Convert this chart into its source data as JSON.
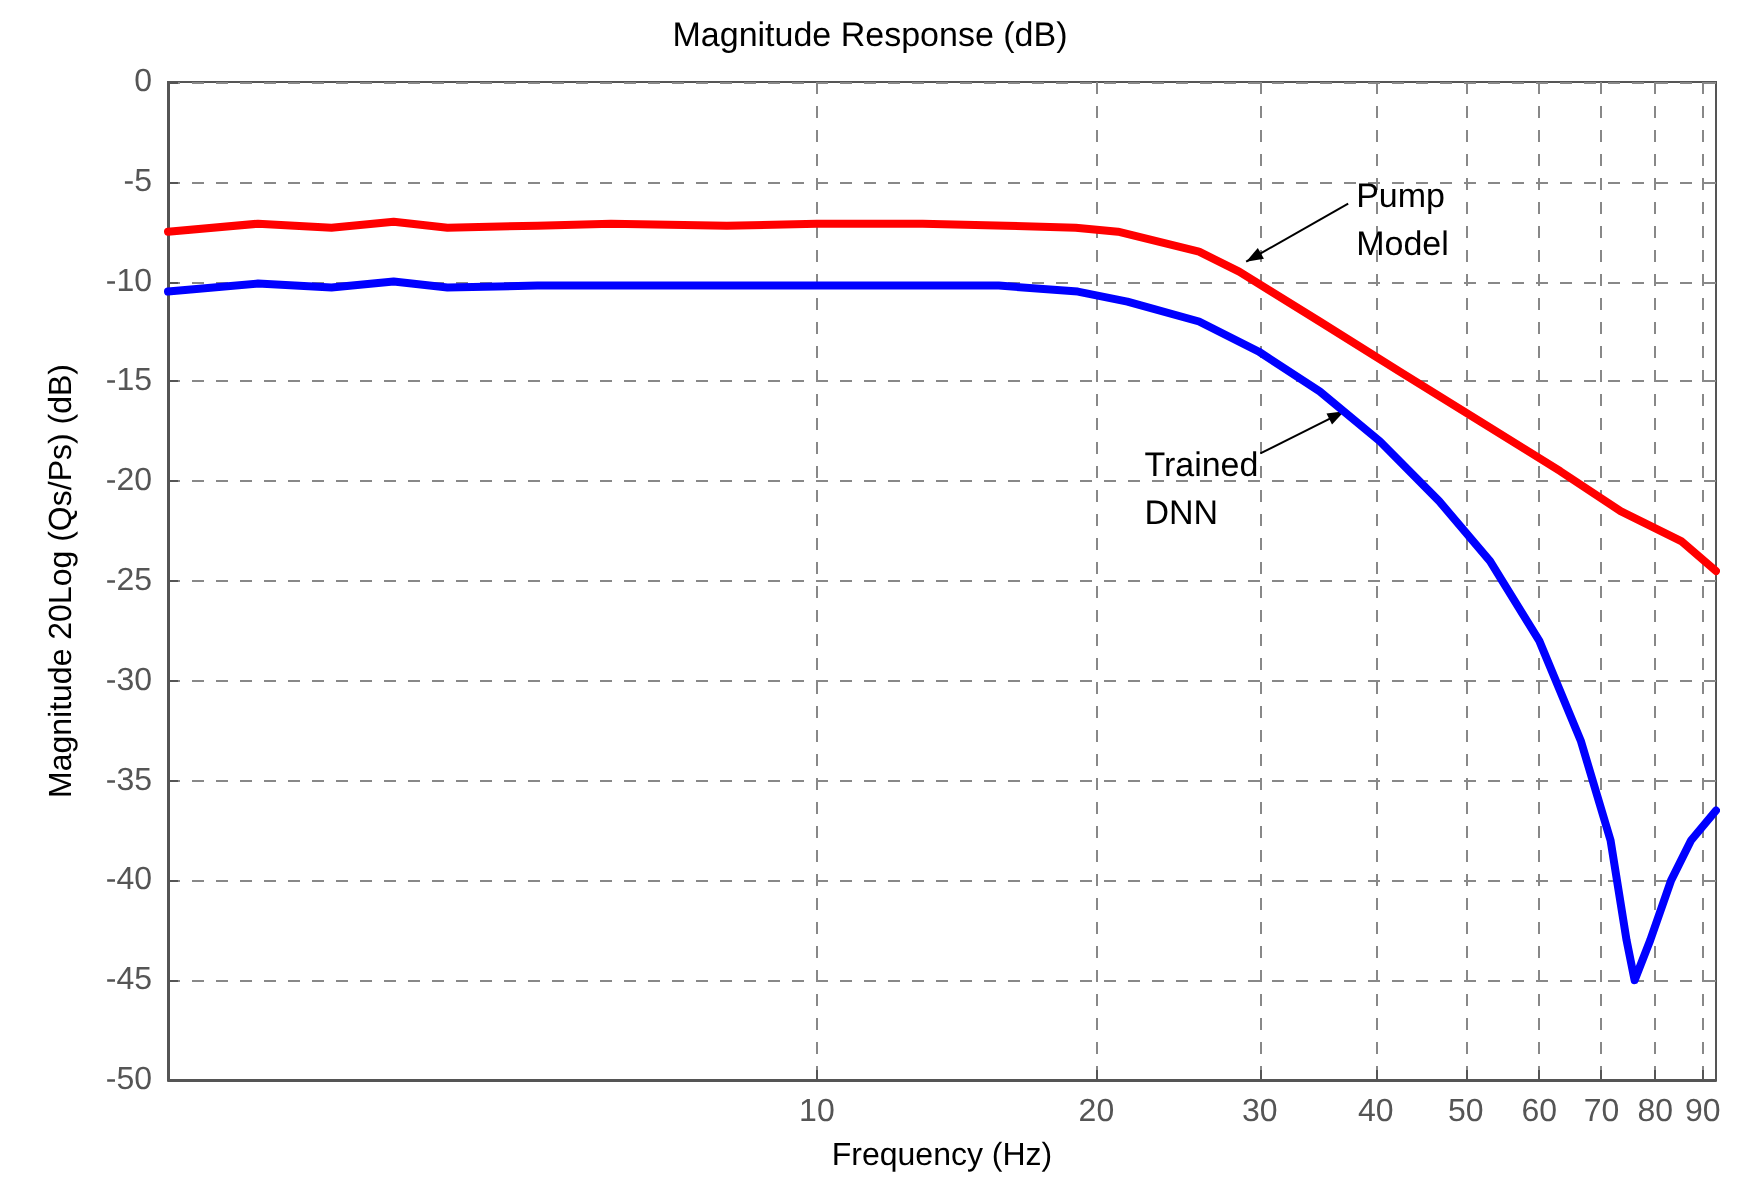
{
  "chart_data": {
    "type": "line",
    "title": "Magnitude Response (dB)",
    "xlabel": "Frequency (Hz)",
    "ylabel": "Magnitude 20Log (Qs/Ps) (dB)",
    "log": "x",
    "grid": true,
    "marker": "none",
    "line_style": "solid",
    "xlim": [
      2,
      93
    ],
    "xticks": [
      10,
      20,
      30,
      40,
      50,
      60,
      70,
      80,
      90
    ],
    "ylim": [
      -50,
      0
    ],
    "yticks": [
      -50,
      -45,
      -40,
      -35,
      -30,
      -25,
      -20,
      -15,
      -10,
      -5,
      0
    ],
    "series": [
      {
        "color": "#ff0000",
        "x": [
          2,
          2.5,
          3,
          3.5,
          4,
          5,
          6,
          8,
          10,
          13,
          16,
          19,
          21.1,
          25.8,
          28.5,
          34.8,
          42.4,
          51.8,
          63.2,
          73.4,
          85.3,
          93
        ],
        "values": [
          -7.5,
          -7.1,
          -7.3,
          -7,
          -7.3,
          -7.2,
          -7.1,
          -7.2,
          -7.1,
          -7.1,
          -7.2,
          -7.3,
          -7.5,
          -8.5,
          -9.5,
          -12,
          -14.5,
          -17,
          -19.5,
          -21.5,
          -23,
          -24.5
        ]
      },
      {
        "color": "#0000ff",
        "x": [
          2,
          2.5,
          3,
          3.5,
          4,
          5,
          6,
          8,
          10,
          13,
          15.7,
          19.1,
          21.6,
          25.8,
          29.9,
          34.8,
          40.4,
          46.8,
          53.1,
          60,
          66.5,
          71.6,
          74.5,
          76,
          79,
          83.2,
          87.4,
          93
        ],
        "values": [
          -10.5,
          -10.1,
          -10.3,
          -10,
          -10.3,
          -10.2,
          -10.2,
          -10.2,
          -10.2,
          -10.2,
          -10.2,
          -10.5,
          -11,
          -12,
          -13.5,
          -15.5,
          -18,
          -21,
          -24,
          -28,
          -33,
          -38,
          -43,
          -45,
          -43,
          -40,
          -38,
          -36.5
        ]
      }
    ],
    "annotations": [
      {
        "text": "Pump Model",
        "x": 29,
        "y": -9
      },
      {
        "text": "Trained DNN",
        "x": 37,
        "y": -16.5
      }
    ]
  }
}
